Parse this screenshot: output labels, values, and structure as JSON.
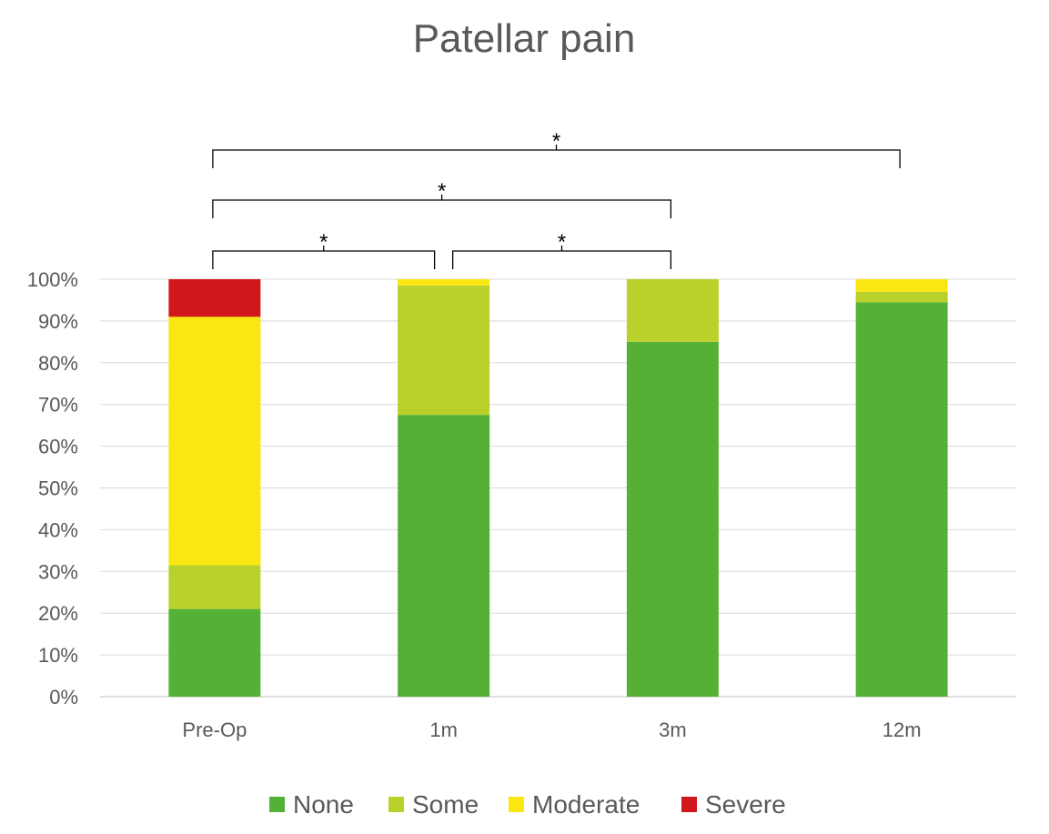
{
  "chart_data": {
    "type": "bar",
    "stacked": true,
    "title": "Patellar pain",
    "categories": [
      "Pre-Op",
      "1m",
      "3m",
      "12m"
    ],
    "series": [
      {
        "name": "None",
        "color": "#55b036",
        "values": [
          21,
          67.5,
          85,
          94.5
        ]
      },
      {
        "name": "Some",
        "color": "#b9d12a",
        "values": [
          10.5,
          31,
          15,
          2.5
        ]
      },
      {
        "name": "Moderate",
        "color": "#fae711",
        "values": [
          59.5,
          1.5,
          0,
          3
        ]
      },
      {
        "name": "Severe",
        "color": "#d1171b",
        "values": [
          9,
          0,
          0,
          0
        ]
      }
    ],
    "ylim": [
      0,
      100
    ],
    "y_ticks": [
      "0%",
      "10%",
      "20%",
      "30%",
      "40%",
      "50%",
      "60%",
      "70%",
      "80%",
      "90%",
      "100%"
    ],
    "grid": true,
    "legend_position": "bottom",
    "significance": [
      {
        "from": "Pre-Op",
        "to": "1m",
        "label": "*"
      },
      {
        "from": "1m",
        "to": "3m",
        "label": "*"
      },
      {
        "from": "Pre-Op",
        "to": "3m",
        "label": "*"
      },
      {
        "from": "Pre-Op",
        "to": "12m",
        "label": "*"
      }
    ]
  }
}
